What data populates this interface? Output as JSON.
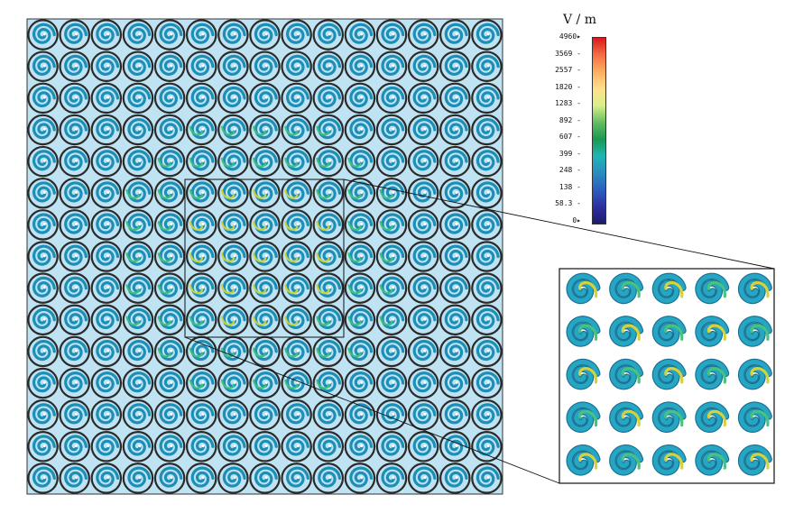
{
  "colorbar": {
    "unit": "V / m",
    "labels": [
      "4960",
      "3569",
      "2557",
      "1820",
      "1283",
      "892",
      "607",
      "399",
      "248",
      "138",
      "58.3",
      "0"
    ],
    "colors": [
      "#d7191c",
      "#f46d43",
      "#fdae61",
      "#fee08b",
      "#d9ef8b",
      "#66bd63",
      "#1a9850",
      "#1fb5b5",
      "#2b8cbe",
      "#2c5fbf",
      "#2d2f9e",
      "#1c1c6e"
    ]
  },
  "array": {
    "rows": 15,
    "cols": 15
  },
  "inset": {
    "rows": 5,
    "cols": 5,
    "zoom_region": {
      "row_start": 5,
      "col_start": 5,
      "rows": 5,
      "cols": 5
    }
  },
  "palette": {
    "background": "#bfe3f2",
    "ring": "#2a2a2a",
    "spiral_main": "#1c8fb8",
    "spiral_hot": "#c9d23a",
    "spiral_warm": "#3fbf7a"
  }
}
